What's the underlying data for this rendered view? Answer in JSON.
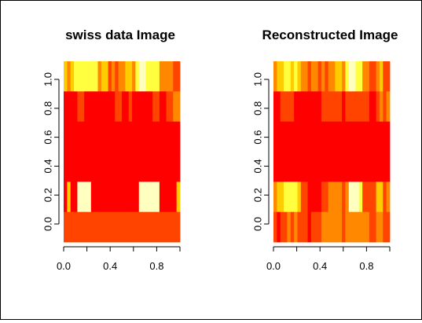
{
  "chart_data": [
    {
      "type": "heatmap",
      "title": "swiss data Image",
      "xlabel": "",
      "ylabel": "",
      "xlim": [
        0.0,
        1.0
      ],
      "ylim": [
        -0.125,
        1.125
      ],
      "x_ticks": [
        "0.0",
        "0.4",
        "0.8"
      ],
      "y_ticks": [
        "0.0",
        "0.2",
        "0.4",
        "0.6",
        "0.8",
        "1.0"
      ],
      "grid": false,
      "legend": "none",
      "colormap": [
        "#FF0000",
        "#FF4400",
        "#FF8800",
        "#FFCC00",
        "#FFFF40",
        "#FFFFBF"
      ],
      "rows": [
        [
          3,
          2,
          3,
          4,
          4,
          4,
          4,
          4,
          4,
          4,
          2,
          3,
          3,
          1,
          2,
          1,
          2,
          2,
          3,
          3,
          2,
          4,
          5,
          5,
          4,
          4,
          4,
          4,
          2,
          2,
          2,
          2,
          1,
          1
        ],
        [
          0,
          0,
          0,
          0,
          1,
          1,
          0,
          0,
          0,
          0,
          0,
          0,
          0,
          0,
          0,
          1,
          1,
          0,
          0,
          1,
          0,
          0,
          0,
          0,
          0,
          0,
          1,
          1,
          0,
          0,
          1,
          1,
          2,
          2
        ],
        [
          0,
          0,
          0,
          0,
          0,
          0,
          0,
          0,
          0,
          0,
          0,
          0,
          0,
          0,
          0,
          0,
          0,
          0,
          0,
          0,
          0,
          0,
          0,
          0,
          0,
          0,
          0,
          0,
          0,
          0,
          0,
          0,
          0,
          0
        ],
        [
          0,
          0,
          0,
          0,
          0,
          0,
          0,
          0,
          0,
          0,
          0,
          0,
          0,
          0,
          0,
          0,
          0,
          0,
          0,
          0,
          0,
          0,
          0,
          0,
          0,
          0,
          0,
          0,
          0,
          0,
          0,
          0,
          0,
          0
        ],
        [
          0,
          3,
          0,
          0,
          5,
          5,
          5,
          5,
          0,
          0,
          0,
          0,
          0,
          0,
          0,
          0,
          0,
          0,
          0,
          0,
          0,
          0,
          5,
          5,
          5,
          5,
          5,
          5,
          0,
          0,
          0,
          0,
          0,
          3
        ],
        [
          1,
          1,
          1,
          1,
          1,
          1,
          1,
          1,
          1,
          1,
          1,
          1,
          1,
          1,
          1,
          1,
          1,
          1,
          1,
          1,
          1,
          1,
          1,
          1,
          1,
          1,
          1,
          1,
          1,
          1,
          1,
          1,
          1,
          1
        ]
      ]
    },
    {
      "type": "heatmap",
      "title": "Reconstructed Image",
      "xlabel": "",
      "ylabel": "",
      "xlim": [
        0.0,
        1.0
      ],
      "ylim": [
        -0.125,
        1.125
      ],
      "x_ticks": [
        "0.0",
        "0.4",
        "0.8"
      ],
      "y_ticks": [
        "0.0",
        "0.2",
        "0.4",
        "0.6",
        "0.8",
        "1.0"
      ],
      "grid": false,
      "legend": "none",
      "colormap": [
        "#FF0000",
        "#FF4400",
        "#FF8800",
        "#FFCC00",
        "#FFFF40",
        "#FFFFBF"
      ],
      "rows": [
        [
          2,
          3,
          3,
          4,
          4,
          3,
          4,
          3,
          2,
          2,
          1,
          2,
          2,
          1,
          2,
          1,
          2,
          2,
          3,
          3,
          2,
          4,
          5,
          5,
          4,
          4,
          2,
          2,
          1,
          1,
          2,
          3,
          1,
          1
        ],
        [
          0,
          0,
          1,
          1,
          1,
          1,
          0,
          0,
          0,
          0,
          0,
          0,
          0,
          0,
          1,
          1,
          1,
          1,
          1,
          1,
          0,
          1,
          1,
          1,
          1,
          1,
          1,
          1,
          0,
          0,
          1,
          2,
          1,
          2
        ],
        [
          0,
          0,
          0,
          0,
          0,
          0,
          0,
          0,
          0,
          0,
          0,
          0,
          0,
          0,
          0,
          0,
          0,
          0,
          0,
          0,
          0,
          0,
          0,
          0,
          0,
          0,
          0,
          0,
          0,
          0,
          0,
          0,
          0,
          0
        ],
        [
          0,
          0,
          0,
          0,
          0,
          0,
          0,
          0,
          0,
          0,
          0,
          0,
          0,
          0,
          0,
          0,
          0,
          0,
          0,
          0,
          0,
          0,
          0,
          0,
          0,
          0,
          0,
          0,
          0,
          0,
          0,
          0,
          0,
          0
        ],
        [
          2,
          3,
          3,
          4,
          4,
          4,
          4,
          3,
          1,
          1,
          0,
          0,
          0,
          0,
          1,
          1,
          2,
          2,
          2,
          2,
          1,
          2,
          5,
          5,
          5,
          4,
          1,
          1,
          1,
          1,
          3,
          3,
          1,
          2
        ],
        [
          1,
          0,
          1,
          1,
          2,
          1,
          2,
          1,
          1,
          1,
          0,
          1,
          1,
          1,
          2,
          2,
          2,
          2,
          2,
          2,
          1,
          2,
          2,
          2,
          2,
          2,
          2,
          2,
          1,
          1,
          2,
          2,
          1,
          1
        ]
      ]
    }
  ]
}
